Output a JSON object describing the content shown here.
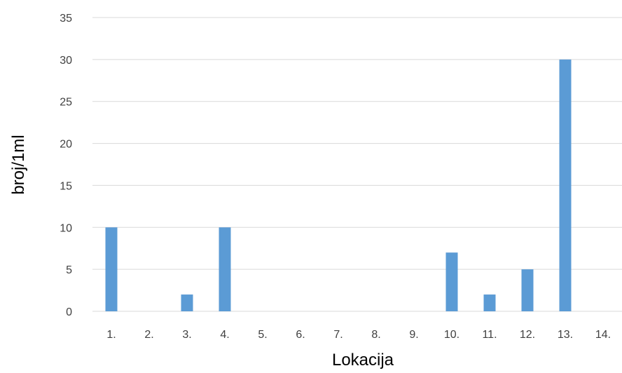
{
  "chart_data": {
    "type": "bar",
    "title": "",
    "xlabel": "Lokacija",
    "ylabel": "broj/1ml",
    "categories": [
      "1.",
      "2.",
      "3.",
      "4.",
      "5.",
      "6.",
      "7.",
      "8.",
      "9.",
      "10.",
      "11.",
      "12.",
      "13.",
      "14."
    ],
    "values": [
      10,
      0,
      2,
      10,
      0,
      0,
      0,
      0,
      0,
      7,
      2,
      5,
      30,
      0
    ],
    "ylim": [
      0,
      35
    ],
    "yticks": [
      "0",
      "5",
      "10",
      "15",
      "20",
      "25",
      "30",
      "35"
    ],
    "grid": true,
    "legend": "none",
    "bar_color": "#5b9bd5",
    "grid_color": "#d9d9d9"
  }
}
